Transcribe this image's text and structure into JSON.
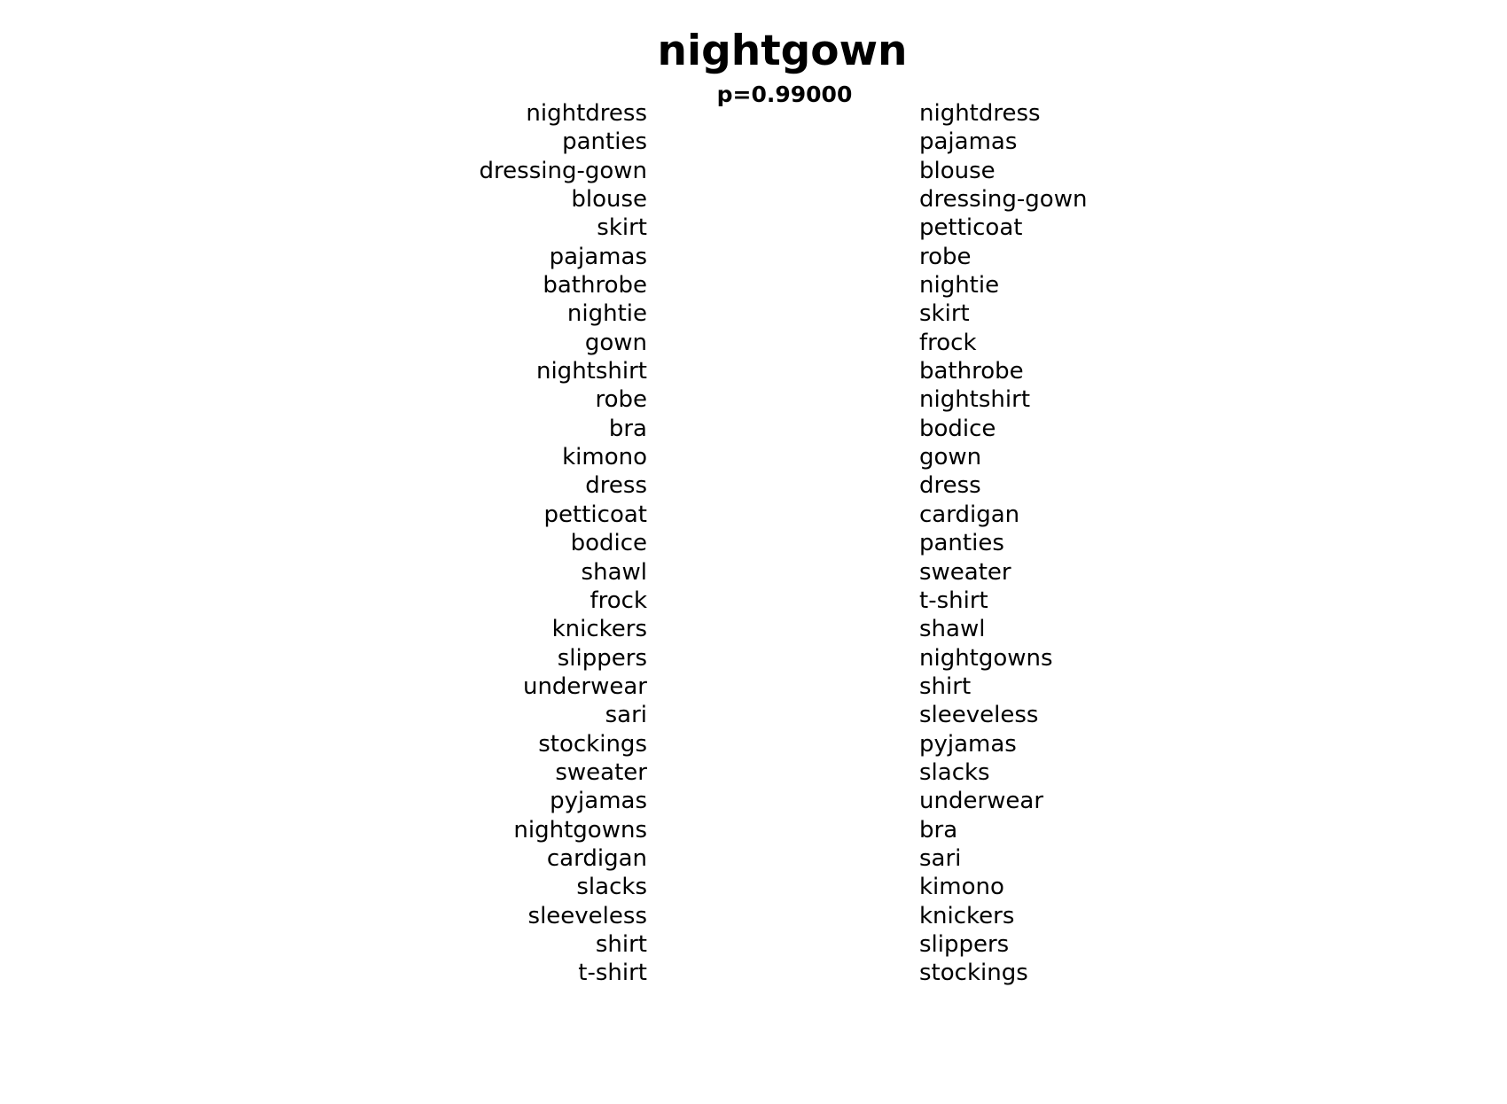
{
  "title": "nightgown",
  "subtitle": "p=0.99000",
  "left_words": [
    "nightdress",
    "panties",
    "dressing-gown",
    "blouse",
    "skirt",
    "pajamas",
    "bathrobe",
    "nightie",
    "gown",
    "nightshirt",
    "robe",
    "bra",
    "kimono",
    "dress",
    "petticoat",
    "bodice",
    "shawl",
    "frock",
    "knickers",
    "slippers",
    "underwear",
    "sari",
    "stockings",
    "sweater",
    "pyjamas",
    "nightgowns",
    "cardigan",
    "slacks",
    "sleeveless",
    "shirt",
    "t-shirt"
  ],
  "right_words": [
    "nightdress",
    "pajamas",
    "blouse",
    "dressing-gown",
    "petticoat",
    "robe",
    "nightie",
    "skirt",
    "frock",
    "bathrobe",
    "nightshirt",
    "bodice",
    "gown",
    "dress",
    "cardigan",
    "panties",
    "sweater",
    "t-shirt",
    "shawl",
    "nightgowns",
    "shirt",
    "sleeveless",
    "pyjamas",
    "slacks",
    "underwear",
    "bra",
    "sari",
    "kimono",
    "knickers",
    "slippers",
    "stockings"
  ]
}
